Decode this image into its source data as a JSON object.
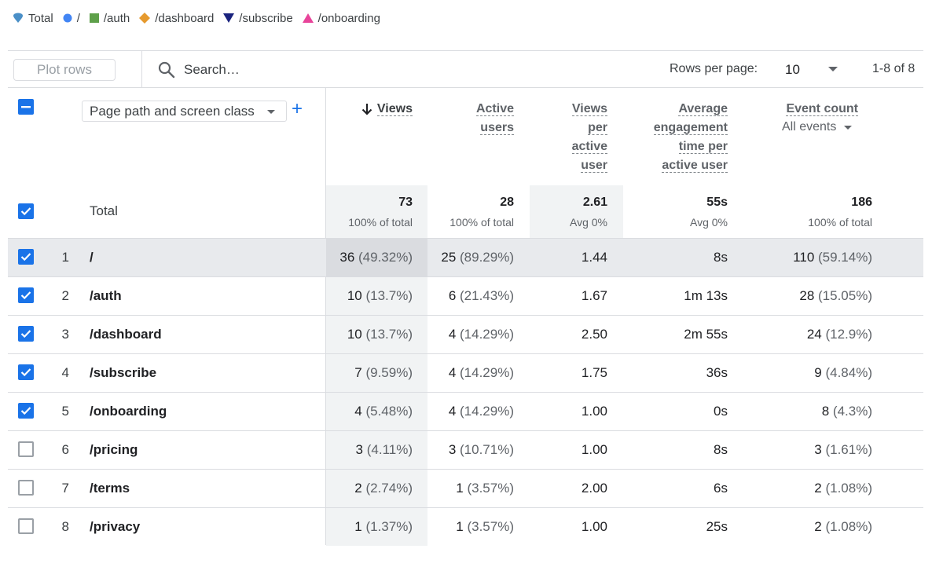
{
  "legend": [
    {
      "label": "Total",
      "icon": "teardrop-icon",
      "color": "#4a8fc7"
    },
    {
      "label": "/",
      "icon": "circle-icon",
      "color": "#4285f4"
    },
    {
      "label": "/auth",
      "icon": "square-icon",
      "color": "#5ea04a"
    },
    {
      "label": "/dashboard",
      "icon": "diamond-icon",
      "color": "#e69a2e"
    },
    {
      "label": "/subscribe",
      "icon": "triangle-down-icon",
      "color": "#1a237e"
    },
    {
      "label": "/onboarding",
      "icon": "triangle-up-icon",
      "color": "#e8449a"
    }
  ],
  "toolbar": {
    "plot_rows_label": "Plot rows",
    "search_placeholder": "Search…",
    "rows_per_page_label": "Rows per page:",
    "rows_per_page_value": "10",
    "pagination": "1-8 of 8"
  },
  "header": {
    "dimension": "Page path and screen class",
    "add_icon": "+",
    "columns": {
      "views": "Views",
      "active_users": [
        "Active",
        "users"
      ],
      "views_per_user": [
        "Views",
        "per",
        "active",
        "user"
      ],
      "engagement": [
        "Average",
        "engagement",
        "time per",
        "active user"
      ],
      "event_count": "Event count",
      "event_filter": "All events"
    }
  },
  "totals": {
    "label": "Total",
    "views": "73",
    "views_sub": "100% of total",
    "users": "28",
    "users_sub": "100% of total",
    "vpu": "2.61",
    "vpu_sub": "Avg 0%",
    "eng": "55s",
    "eng_sub": "Avg 0%",
    "events": "186",
    "events_sub": "100% of total"
  },
  "rows": [
    {
      "idx": "1",
      "path": "/",
      "checked": true,
      "views": "36",
      "views_pct": "(49.32%)",
      "users": "25",
      "users_pct": "(89.29%)",
      "vpu": "1.44",
      "eng": "8s",
      "events": "110",
      "events_pct": "(59.14%)"
    },
    {
      "idx": "2",
      "path": "/auth",
      "checked": true,
      "views": "10",
      "views_pct": "(13.7%)",
      "users": "6",
      "users_pct": "(21.43%)",
      "vpu": "1.67",
      "eng": "1m 13s",
      "events": "28",
      "events_pct": "(15.05%)"
    },
    {
      "idx": "3",
      "path": "/dashboard",
      "checked": true,
      "views": "10",
      "views_pct": "(13.7%)",
      "users": "4",
      "users_pct": "(14.29%)",
      "vpu": "2.50",
      "eng": "2m 55s",
      "events": "24",
      "events_pct": "(12.9%)"
    },
    {
      "idx": "4",
      "path": "/subscribe",
      "checked": true,
      "views": "7",
      "views_pct": "(9.59%)",
      "users": "4",
      "users_pct": "(14.29%)",
      "vpu": "1.75",
      "eng": "36s",
      "events": "9",
      "events_pct": "(4.84%)"
    },
    {
      "idx": "5",
      "path": "/onboarding",
      "checked": true,
      "views": "4",
      "views_pct": "(5.48%)",
      "users": "4",
      "users_pct": "(14.29%)",
      "vpu": "1.00",
      "eng": "0s",
      "events": "8",
      "events_pct": "(4.3%)"
    },
    {
      "idx": "6",
      "path": "/pricing",
      "checked": false,
      "views": "3",
      "views_pct": "(4.11%)",
      "users": "3",
      "users_pct": "(10.71%)",
      "vpu": "1.00",
      "eng": "8s",
      "events": "3",
      "events_pct": "(1.61%)"
    },
    {
      "idx": "7",
      "path": "/terms",
      "checked": false,
      "views": "2",
      "views_pct": "(2.74%)",
      "users": "1",
      "users_pct": "(3.57%)",
      "vpu": "2.00",
      "eng": "6s",
      "events": "2",
      "events_pct": "(1.08%)"
    },
    {
      "idx": "8",
      "path": "/privacy",
      "checked": false,
      "views": "1",
      "views_pct": "(1.37%)",
      "users": "1",
      "users_pct": "(3.57%)",
      "vpu": "1.00",
      "eng": "25s",
      "events": "2",
      "events_pct": "(1.08%)"
    }
  ]
}
